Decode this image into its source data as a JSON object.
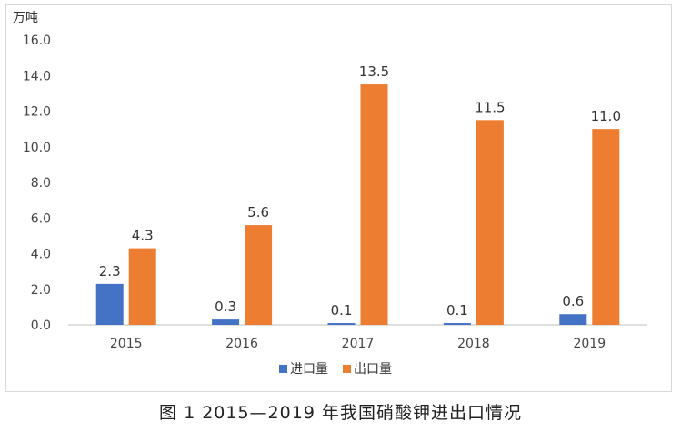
{
  "chart_data": {
    "type": "bar",
    "categories": [
      "2015",
      "2016",
      "2017",
      "2018",
      "2019"
    ],
    "series": [
      {
        "name": "进口量",
        "color": "#4472C4",
        "values": [
          2.3,
          0.3,
          0.1,
          0.1,
          0.6
        ],
        "labels": [
          "2.3",
          "0.3",
          "0.1",
          "0.1",
          "0.6"
        ]
      },
      {
        "name": "出口量",
        "color": "#ED7D31",
        "values": [
          4.3,
          5.6,
          13.5,
          11.5,
          11.0
        ],
        "labels": [
          "4.3",
          "5.6",
          "13.5",
          "11.5",
          "11.0"
        ]
      }
    ],
    "ylabel": "万吨",
    "ylim": [
      0,
      16
    ],
    "yticks": [
      "0.0",
      "2.0",
      "4.0",
      "6.0",
      "8.0",
      "10.0",
      "12.0",
      "14.0",
      "16.0"
    ],
    "grid": false,
    "legend": "bottom-center"
  },
  "caption": "图 1  2015—2019 年我国硝酸钾进出口情况"
}
